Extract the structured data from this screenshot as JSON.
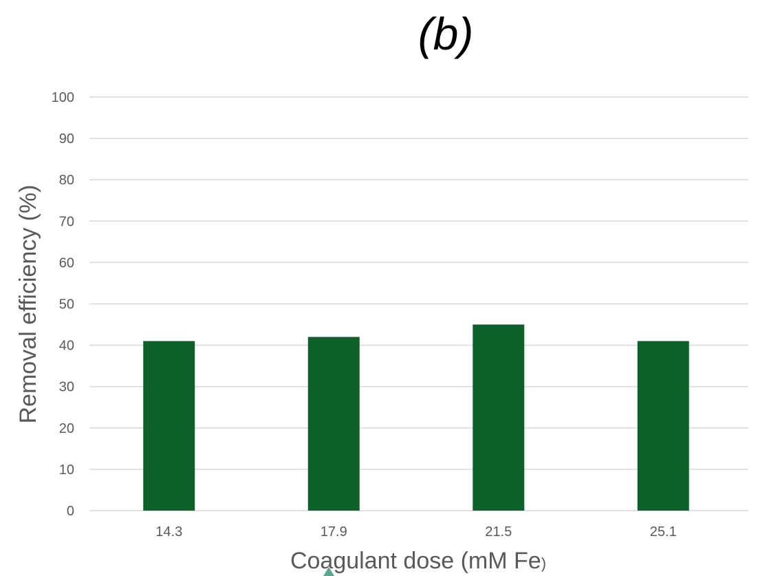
{
  "chart_data": {
    "type": "bar",
    "title": "(b)",
    "categories": [
      "14.3",
      "17.9",
      "21.5",
      "25.1"
    ],
    "values": [
      41,
      42,
      45,
      41
    ],
    "xlabel": "Coagulant dose (mM Fe",
    "xlabel_suffix": ")",
    "ylabel": "Removal efficiency (%)",
    "ylim": [
      0,
      100
    ],
    "yticks": [
      "0",
      "10",
      "20",
      "30",
      "40",
      "50",
      "60",
      "70",
      "80",
      "90",
      "100"
    ],
    "grid": true,
    "legend": "none",
    "colors": {
      "bar": "#0e6128",
      "grid": "#d9d9d9",
      "text": "#595959"
    }
  }
}
